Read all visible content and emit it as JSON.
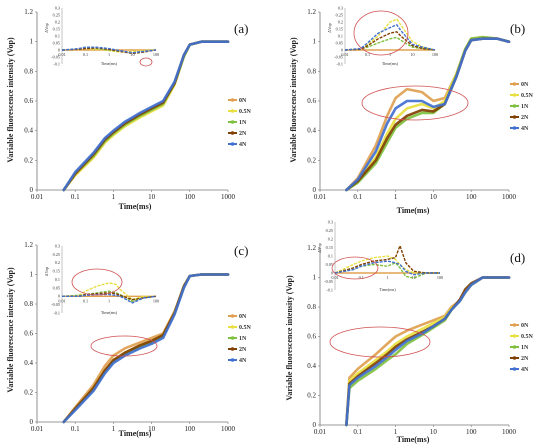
{
  "legend_series": [
    "0N",
    "0.5N",
    "1N",
    "2N",
    "4N"
  ],
  "series_colors": [
    "#e0a050",
    "#e8e040",
    "#80c040",
    "#804000",
    "#4070d0"
  ],
  "highlight_color": "#d05050",
  "chart_data": [
    {
      "type": "line",
      "panel": "(a)",
      "xlabel": "Time(ms)",
      "ylabel": "Variable fluorescence intensity (Vop)",
      "xscale": "log",
      "xlim": [
        0.01,
        1000
      ],
      "ylim": [
        0,
        1.2
      ],
      "x_ticks": [
        "0.01",
        "0.1",
        "1",
        "10",
        "100",
        "1000"
      ],
      "y_ticks": [
        "0",
        "0.2",
        "0.4",
        "0.6",
        "0.8",
        "1",
        "1.2"
      ],
      "x": [
        0.05,
        0.1,
        0.3,
        0.6,
        1,
        2,
        5,
        10,
        20,
        40,
        70,
        100,
        200,
        500,
        1000
      ],
      "series": [
        {
          "name": "0N",
          "values": [
            0,
            0.1,
            0.22,
            0.32,
            0.38,
            0.44,
            0.5,
            0.54,
            0.58,
            0.72,
            0.9,
            0.98,
            1.0,
            1.0,
            1.0
          ]
        },
        {
          "name": "0.5N",
          "values": [
            0,
            0.1,
            0.22,
            0.32,
            0.37,
            0.43,
            0.49,
            0.53,
            0.57,
            0.71,
            0.9,
            0.98,
            1.0,
            1.0,
            1.0
          ]
        },
        {
          "name": "1N",
          "values": [
            0,
            0.11,
            0.23,
            0.33,
            0.38,
            0.44,
            0.5,
            0.54,
            0.58,
            0.72,
            0.9,
            0.98,
            1.0,
            1.0,
            1.0
          ]
        },
        {
          "name": "2N",
          "values": [
            0,
            0.11,
            0.24,
            0.34,
            0.39,
            0.45,
            0.51,
            0.55,
            0.59,
            0.72,
            0.91,
            0.98,
            1.0,
            1.0,
            1.0
          ]
        },
        {
          "name": "4N",
          "values": [
            0,
            0.12,
            0.25,
            0.35,
            0.4,
            0.46,
            0.52,
            0.56,
            0.6,
            0.73,
            0.91,
            0.98,
            1.0,
            1.0,
            1.0
          ]
        }
      ],
      "inset": {
        "xlabel": "Time(ms)",
        "ylabel": "ΔVop",
        "x_ticks": [
          "0.01",
          "0.1",
          "1",
          "10",
          "100"
        ],
        "y_ticks": [
          "-0.1",
          "-0.05",
          "0",
          "0.05",
          "0.1",
          "0.15",
          "0.2",
          "0.25",
          "0.3"
        ],
        "ylim": [
          -0.1,
          0.3
        ],
        "x": [
          0.01,
          0.05,
          0.1,
          0.3,
          1,
          3,
          10,
          30,
          100
        ],
        "series": [
          {
            "name": "0N",
            "values": [
              0,
              0,
              0,
              0,
              0,
              0,
              0,
              0,
              0
            ]
          },
          {
            "name": "0.5N",
            "values": [
              0,
              0.005,
              0.01,
              0.005,
              -0.005,
              -0.015,
              -0.01,
              -0.005,
              0
            ]
          },
          {
            "name": "1N",
            "values": [
              0,
              0.005,
              0.015,
              0.01,
              0,
              -0.01,
              -0.02,
              -0.01,
              0
            ]
          },
          {
            "name": "2N",
            "values": [
              0,
              0.005,
              0.01,
              0.015,
              0.005,
              -0.01,
              -0.025,
              -0.015,
              0
            ]
          },
          {
            "name": "4N",
            "values": [
              0,
              0.01,
              0.02,
              0.02,
              0.01,
              -0.005,
              -0.02,
              -0.01,
              0
            ]
          }
        ]
      }
    },
    {
      "type": "line",
      "panel": "(b)",
      "xlabel": "Time(ms)",
      "ylabel": "Variable fluorescence intensity (Vop)",
      "xscale": "log",
      "xlim": [
        0.01,
        1000
      ],
      "ylim": [
        0,
        1.2
      ],
      "x_ticks": [
        "0.01",
        "0.1",
        "1",
        "10",
        "100",
        "1000"
      ],
      "y_ticks": [
        "0",
        "0.2",
        "0.4",
        "0.6",
        "0.8",
        "1",
        "1.2"
      ],
      "x": [
        0.05,
        0.1,
        0.3,
        0.6,
        1,
        2,
        5,
        10,
        20,
        40,
        70,
        100,
        200,
        500,
        1000
      ],
      "series": [
        {
          "name": "0N",
          "values": [
            0,
            0.08,
            0.3,
            0.5,
            0.62,
            0.68,
            0.66,
            0.6,
            0.62,
            0.78,
            0.95,
            1.02,
            1.03,
            1.02,
            1.0
          ]
        },
        {
          "name": "0.5N",
          "values": [
            0,
            0.06,
            0.22,
            0.38,
            0.48,
            0.55,
            0.58,
            0.55,
            0.6,
            0.78,
            0.95,
            1.02,
            1.03,
            1.02,
            1.0
          ]
        },
        {
          "name": "1N",
          "values": [
            0,
            0.05,
            0.18,
            0.32,
            0.42,
            0.48,
            0.52,
            0.52,
            0.58,
            0.77,
            0.95,
            1.02,
            1.03,
            1.02,
            1.0
          ]
        },
        {
          "name": "2N",
          "values": [
            0,
            0.06,
            0.2,
            0.35,
            0.44,
            0.5,
            0.54,
            0.53,
            0.58,
            0.76,
            0.94,
            1.01,
            1.02,
            1.02,
            1.0
          ]
        },
        {
          "name": "4N",
          "values": [
            0,
            0.07,
            0.26,
            0.45,
            0.55,
            0.6,
            0.6,
            0.56,
            0.58,
            0.76,
            0.94,
            1.01,
            1.02,
            1.02,
            1.0
          ]
        }
      ],
      "inset": {
        "xlabel": "Time(ms)",
        "ylabel": "ΔVop",
        "x_ticks": [
          "0.01",
          "0.1",
          "1",
          "10",
          "100"
        ],
        "y_ticks": [
          "-0.1",
          "-0.05",
          "0",
          "0.05",
          "0.1",
          "0.15",
          "0.2",
          "0.25",
          "0.3"
        ],
        "ylim": [
          -0.1,
          0.3
        ],
        "x": [
          0.01,
          0.05,
          0.1,
          0.3,
          1,
          2,
          3,
          10,
          30,
          100
        ],
        "series": [
          {
            "name": "0N",
            "values": [
              0,
              0,
              0,
              0,
              0,
              0,
              0,
              0,
              0,
              0
            ]
          },
          {
            "name": "0.5N",
            "values": [
              0,
              0.01,
              0.04,
              0.1,
              0.2,
              0.22,
              0.18,
              0.06,
              0.02,
              0
            ]
          },
          {
            "name": "1N",
            "values": [
              0,
              0.005,
              0.02,
              0.05,
              0.08,
              0.09,
              0.07,
              0.02,
              0.01,
              0
            ]
          },
          {
            "name": "2N",
            "values": [
              0,
              0.005,
              0.03,
              0.08,
              0.12,
              0.13,
              0.1,
              0.03,
              0.01,
              0
            ]
          },
          {
            "name": "4N",
            "values": [
              0,
              0.01,
              0.05,
              0.12,
              0.16,
              0.18,
              0.14,
              0.04,
              0.02,
              0
            ]
          }
        ]
      }
    },
    {
      "type": "line",
      "panel": "(c)",
      "xlabel": "Time(ms)",
      "ylabel": "Variable fluorescence intensity (Vop)",
      "xscale": "log",
      "xlim": [
        0.01,
        1000
      ],
      "ylim": [
        0,
        1.2
      ],
      "x_ticks": [
        "0.01",
        "0.1",
        "1",
        "10",
        "100",
        "1000"
      ],
      "y_ticks": [
        "0",
        "0.2",
        "0.4",
        "0.6",
        "0.8",
        "1",
        "1.2"
      ],
      "x": [
        0.05,
        0.1,
        0.3,
        0.6,
        1,
        2,
        5,
        10,
        20,
        40,
        70,
        100,
        200,
        500,
        1000
      ],
      "series": [
        {
          "name": "0N",
          "values": [
            0,
            0.1,
            0.25,
            0.38,
            0.45,
            0.5,
            0.54,
            0.57,
            0.6,
            0.75,
            0.92,
            0.99,
            1.0,
            1.0,
            1.0
          ]
        },
        {
          "name": "0.5N",
          "values": [
            0,
            0.09,
            0.23,
            0.35,
            0.42,
            0.47,
            0.52,
            0.55,
            0.59,
            0.74,
            0.92,
            0.99,
            1.0,
            1.0,
            1.0
          ]
        },
        {
          "name": "1N",
          "values": [
            0,
            0.09,
            0.22,
            0.34,
            0.41,
            0.46,
            0.51,
            0.54,
            0.58,
            0.74,
            0.92,
            0.99,
            1.0,
            1.0,
            1.0
          ]
        },
        {
          "name": "2N",
          "values": [
            0,
            0.09,
            0.23,
            0.35,
            0.42,
            0.47,
            0.52,
            0.55,
            0.59,
            0.74,
            0.92,
            0.99,
            1.0,
            1.0,
            1.0
          ]
        },
        {
          "name": "4N",
          "values": [
            0,
            0.08,
            0.21,
            0.33,
            0.4,
            0.45,
            0.5,
            0.53,
            0.57,
            0.73,
            0.91,
            0.99,
            1.0,
            1.0,
            1.0
          ]
        }
      ],
      "inset": {
        "xlabel": "Time(ms)",
        "ylabel": "ΔVop",
        "x_ticks": [
          "0.01",
          "0.1",
          "1",
          "10",
          "100"
        ],
        "y_ticks": [
          "-0.1",
          "-0.05",
          "0",
          "0.05",
          "0.1",
          "0.15",
          "0.2",
          "0.25",
          "0.3"
        ],
        "ylim": [
          -0.1,
          0.3
        ],
        "x": [
          0.01,
          0.05,
          0.1,
          0.3,
          1,
          2,
          3,
          10,
          30,
          100
        ],
        "series": [
          {
            "name": "0N",
            "values": [
              0,
              0,
              0,
              0,
              0,
              0,
              0,
              0,
              0,
              0
            ]
          },
          {
            "name": "0.5N",
            "values": [
              0,
              0.005,
              0.03,
              0.06,
              0.08,
              0.07,
              0.04,
              -0.02,
              0,
              0
            ]
          },
          {
            "name": "1N",
            "values": [
              0,
              0.005,
              0.01,
              0.02,
              0.03,
              0.02,
              0.01,
              -0.03,
              -0.01,
              0
            ]
          },
          {
            "name": "2N",
            "values": [
              0,
              0,
              0.01,
              0.015,
              0.02,
              0.015,
              0.005,
              -0.02,
              -0.01,
              0
            ]
          },
          {
            "name": "4N",
            "values": [
              0,
              0,
              0.005,
              0.01,
              0.01,
              0.005,
              0,
              -0.04,
              -0.01,
              0
            ]
          }
        ]
      }
    },
    {
      "type": "line",
      "panel": "(d)",
      "xlabel": "Time(ms)",
      "ylabel": "Variable fluorescence intensity (Vop)",
      "xscale": "log",
      "xlim": [
        0.01,
        1000
      ],
      "ylim": [
        0,
        1.2
      ],
      "x_ticks": [
        "0.01",
        "0.1",
        "1",
        "10",
        "100",
        "1000"
      ],
      "y_ticks": [
        "0",
        "0.2",
        "0.4",
        "0.6",
        "0.8",
        "1",
        "1.2"
      ],
      "x": [
        0.05,
        0.06,
        0.1,
        0.3,
        0.6,
        1,
        2,
        5,
        10,
        20,
        30,
        50,
        70,
        100,
        200,
        500,
        1000
      ],
      "series": [
        {
          "name": "0N",
          "values": [
            0,
            0.32,
            0.38,
            0.48,
            0.55,
            0.6,
            0.64,
            0.68,
            0.71,
            0.74,
            0.8,
            0.84,
            0.9,
            0.95,
            1.0,
            1.0,
            1.0
          ]
        },
        {
          "name": "0.5N",
          "values": [
            0,
            0.3,
            0.35,
            0.44,
            0.5,
            0.55,
            0.6,
            0.65,
            0.69,
            0.73,
            0.79,
            0.84,
            0.9,
            0.95,
            1.0,
            1.0,
            1.0
          ]
        },
        {
          "name": "1N",
          "values": [
            0,
            0.25,
            0.3,
            0.38,
            0.44,
            0.48,
            0.55,
            0.61,
            0.66,
            0.71,
            0.78,
            0.84,
            0.9,
            0.95,
            1.0,
            1.0,
            1.0
          ]
        },
        {
          "name": "2N",
          "values": [
            0,
            0.28,
            0.33,
            0.42,
            0.48,
            0.53,
            0.58,
            0.63,
            0.67,
            0.72,
            0.78,
            0.85,
            0.92,
            0.96,
            1.0,
            1.0,
            1.0
          ]
        },
        {
          "name": "4N",
          "values": [
            0,
            0.27,
            0.32,
            0.4,
            0.46,
            0.51,
            0.57,
            0.62,
            0.67,
            0.72,
            0.78,
            0.84,
            0.9,
            0.95,
            1.0,
            1.0,
            1.0
          ]
        }
      ],
      "inset": {
        "xlabel": "Time(ms)",
        "ylabel": "ΔVop",
        "x_ticks": [
          "0.01",
          "0.1",
          "1",
          "10",
          "100"
        ],
        "y_ticks": [
          "-0.1",
          "-0.05",
          "0",
          "0.05",
          "0.1",
          "0.15",
          "0.2",
          "0.25",
          "0.3"
        ],
        "ylim": [
          -0.1,
          0.3
        ],
        "x": [
          0.01,
          0.05,
          0.1,
          0.3,
          1,
          2,
          3,
          5,
          10,
          30,
          100
        ],
        "series": [
          {
            "name": "0N",
            "values": [
              0,
              0,
              0,
              0,
              0,
              0,
              0,
              0,
              0,
              0,
              0
            ]
          },
          {
            "name": "0.5N",
            "values": [
              0,
              0.05,
              0.07,
              0.09,
              0.1,
              0.08,
              0.05,
              0.02,
              0,
              0,
              0
            ]
          },
          {
            "name": "1N",
            "values": [
              0,
              0.02,
              0.04,
              0.05,
              0.04,
              0.06,
              0.03,
              -0.02,
              -0.03,
              0,
              0
            ]
          },
          {
            "name": "2N",
            "values": [
              0,
              0.03,
              0.05,
              0.07,
              0.08,
              0.09,
              0.16,
              0.06,
              0.01,
              0,
              0
            ]
          },
          {
            "name": "4N",
            "values": [
              0,
              0.02,
              0.04,
              0.06,
              0.07,
              0.06,
              0.05,
              0.01,
              -0.01,
              0,
              0
            ]
          }
        ]
      }
    }
  ]
}
